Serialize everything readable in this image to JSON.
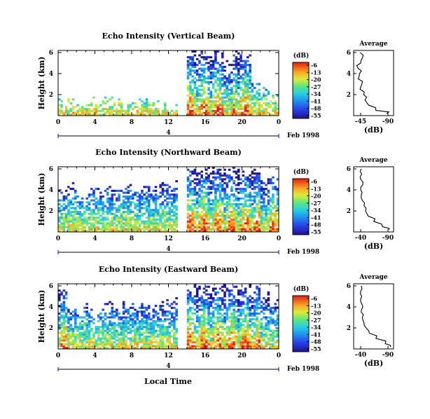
{
  "figure": {
    "date_label": "Feb 1998",
    "xlabel_bottom": "Local Time",
    "day_marker": "4"
  },
  "chart_data": [
    {
      "type": "heatmap",
      "title": "Echo Intensity (Vertical Beam)",
      "xlabel": "",
      "ylabel": "Height (km)",
      "x_ticks": [
        "0",
        "4",
        "8",
        "12",
        "16",
        "20",
        "0"
      ],
      "y_ticks": [
        "2",
        "4",
        "6"
      ],
      "xlim": [
        0,
        24
      ],
      "ylim": [
        0,
        6.2
      ],
      "colorbar": {
        "unit": "(dB)",
        "ticks": [
          "-6",
          "-13",
          "-20",
          "-27",
          "-34",
          "-41",
          "-48",
          "-55"
        ]
      },
      "echo_top_km": [
        1.2,
        1.1,
        1.0,
        1.3,
        1.1,
        1.4,
        1.2,
        1.0,
        1.1,
        1.2,
        1.0,
        1.0,
        0.9,
        0.0,
        6.1,
        6.0,
        5.5,
        6.1,
        5.0,
        6.1,
        5.8,
        3.0,
        2.5,
        1.5
      ],
      "inset": {
        "title": "Average",
        "xlabel": "(dB)",
        "x_ticks": [
          "-45",
          "-90"
        ],
        "y_ticks": [
          "2",
          "4",
          "6"
        ],
        "profile": {
          "height_km": [
            0.2,
            0.5,
            1.0,
            1.5,
            2.0,
            2.5,
            3.0,
            3.5,
            4.0,
            4.5,
            5.0,
            5.5,
            6.0
          ],
          "db": [
            -88,
            -70,
            -58,
            -52,
            -50,
            -44,
            -47,
            -41,
            -43,
            -41,
            -45,
            -48,
            -44
          ]
        }
      }
    },
    {
      "type": "heatmap",
      "title": "Echo Intensity (Northward Beam)",
      "xlabel": "",
      "ylabel": "Height (km)",
      "x_ticks": [
        "0",
        "4",
        "8",
        "12",
        "16",
        "20",
        "0"
      ],
      "y_ticks": [
        "2",
        "4",
        "6"
      ],
      "xlim": [
        0,
        24
      ],
      "ylim": [
        0,
        6.2
      ],
      "colorbar": {
        "unit": "(dB)",
        "ticks": [
          "-6",
          "-13",
          "-20",
          "-27",
          "-34",
          "-41",
          "-48",
          "-55"
        ]
      },
      "echo_top_km": [
        3.8,
        4.2,
        3.5,
        4.0,
        3.6,
        4.1,
        3.8,
        4.3,
        3.9,
        4.2,
        4.0,
        4.5,
        4.3,
        0.0,
        6.0,
        5.8,
        6.1,
        6.0,
        5.9,
        6.1,
        5.7,
        6.0,
        4.8,
        5.2
      ],
      "inset": {
        "title": "Average",
        "xlabel": "(dB)",
        "x_ticks": [
          "-40",
          "-90"
        ],
        "y_ticks": [
          "2",
          "4",
          "6"
        ],
        "profile": {
          "height_km": [
            0.2,
            0.5,
            1.0,
            1.5,
            2.0,
            2.5,
            3.0,
            3.5,
            4.0,
            4.5,
            5.0,
            5.5,
            6.0
          ],
          "db": [
            -92,
            -80,
            -64,
            -54,
            -49,
            -46,
            -43,
            -41,
            -40,
            -44,
            -40,
            -42,
            -41
          ]
        }
      }
    },
    {
      "type": "heatmap",
      "title": "Echo Intensity (Eastward Beam)",
      "xlabel": "Local Time",
      "ylabel": "Height (km)",
      "x_ticks": [
        "0",
        "4",
        "8",
        "12",
        "16",
        "20",
        "0"
      ],
      "y_ticks": [
        "2",
        "4",
        "6"
      ],
      "xlim": [
        0,
        24
      ],
      "ylim": [
        0,
        6.2
      ],
      "colorbar": {
        "unit": "(dB)",
        "ticks": [
          "-6",
          "-13",
          "-20",
          "-27",
          "-34",
          "-41",
          "-48",
          "-55"
        ]
      },
      "echo_top_km": [
        5.5,
        4.0,
        3.5,
        3.8,
        3.6,
        4.0,
        3.7,
        4.2,
        4.0,
        4.1,
        3.8,
        4.3,
        4.5,
        0.0,
        6.1,
        6.0,
        6.1,
        5.9,
        6.0,
        6.1,
        5.8,
        6.0,
        5.0,
        4.5
      ],
      "inset": {
        "title": "Average",
        "xlabel": "(dB)",
        "x_ticks": [
          "-40",
          "-90"
        ],
        "y_ticks": [
          "2",
          "4",
          "6"
        ],
        "profile": {
          "height_km": [
            0.2,
            0.5,
            1.0,
            1.5,
            2.0,
            2.5,
            3.0,
            3.5,
            4.0,
            4.5,
            5.0,
            5.5,
            6.0
          ],
          "db": [
            -95,
            -85,
            -68,
            -56,
            -50,
            -46,
            -43,
            -41,
            -44,
            -40,
            -42,
            -40,
            -41
          ]
        }
      }
    }
  ]
}
